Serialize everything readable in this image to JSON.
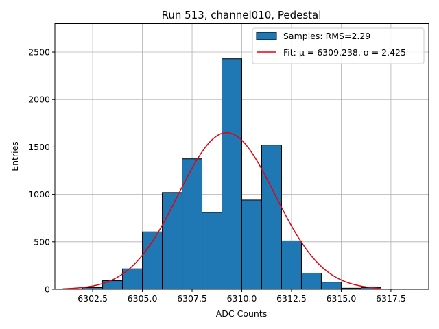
{
  "chart_data": {
    "type": "bar",
    "title": "Run 513, channel010, Pedestal",
    "xlabel": "ADC Counts",
    "ylabel": "Entries",
    "xlim": [
      6300.6,
      6319.4
    ],
    "ylim": [
      0,
      2800
    ],
    "grid": true,
    "x_ticks": [
      6302.5,
      6305.0,
      6307.5,
      6310.0,
      6312.5,
      6315.0,
      6317.5
    ],
    "x_tick_labels": [
      "6302.5",
      "6305.0",
      "6307.5",
      "6310.0",
      "6312.5",
      "6315.0",
      "6317.5"
    ],
    "y_ticks": [
      0,
      500,
      1000,
      1500,
      2000,
      2500
    ],
    "y_tick_labels": [
      "0",
      "500",
      "1000",
      "1500",
      "2000",
      "2500"
    ],
    "bin_edges": [
      6301,
      6302,
      6303,
      6304,
      6305,
      6306,
      6307,
      6308,
      6309,
      6310,
      6311,
      6312,
      6313,
      6314,
      6315,
      6316,
      6317
    ],
    "bin_counts": [
      3,
      18,
      90,
      215,
      605,
      1020,
      1375,
      810,
      2430,
      940,
      1520,
      510,
      170,
      75,
      12,
      18
    ],
    "fit": {
      "mu": 6309.238,
      "sigma": 2.425,
      "amplitude": 1650,
      "x_range": [
        6301,
        6317
      ]
    },
    "legend": {
      "position": "upper right",
      "entries": [
        {
          "name": "Samples: RMS=2.29",
          "kind": "patch",
          "color": "#1f77b4"
        },
        {
          "name": "Fit: μ = 6309.238, σ = 2.425",
          "kind": "line",
          "color": "#e8000b"
        }
      ]
    },
    "colors": {
      "bar_fill": "#1f77b4",
      "bar_edge": "#000000",
      "fit_line": "#e8000b",
      "grid": "#b0b0b0"
    }
  }
}
